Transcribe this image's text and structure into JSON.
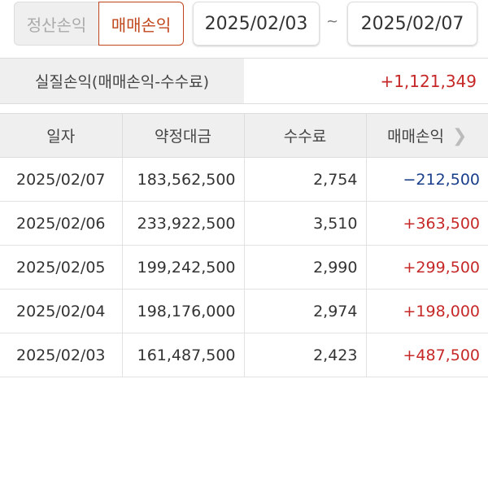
{
  "toggle": {
    "options": [
      "정산손익",
      "매매손익"
    ],
    "selected": "매매손익",
    "accent": "#c0461c"
  },
  "date_range": {
    "from": "2025/02/03",
    "separator": "~",
    "to": "2025/02/07"
  },
  "summary": {
    "label": "실질손익(매매손익-수수료)",
    "value": "+1,121,349"
  },
  "table": {
    "headers": [
      "일자",
      "약정대금",
      "수수료",
      "매매손익"
    ],
    "rows": [
      [
        "2025/02/07",
        "183,562,500",
        "2,754",
        "−212,500"
      ],
      [
        "2025/02/06",
        "233,922,500",
        "3,510",
        "+363,500"
      ],
      [
        "2025/02/05",
        "199,242,500",
        "2,990",
        "+299,500"
      ],
      [
        "2025/02/04",
        "198,176,000",
        "2,974",
        "+198,000"
      ],
      [
        "2025/02/03",
        "161,487,500",
        "2,423",
        "+487,500"
      ]
    ]
  },
  "colors": {
    "positive": "#c62828",
    "negative": "#1a3f8a"
  }
}
